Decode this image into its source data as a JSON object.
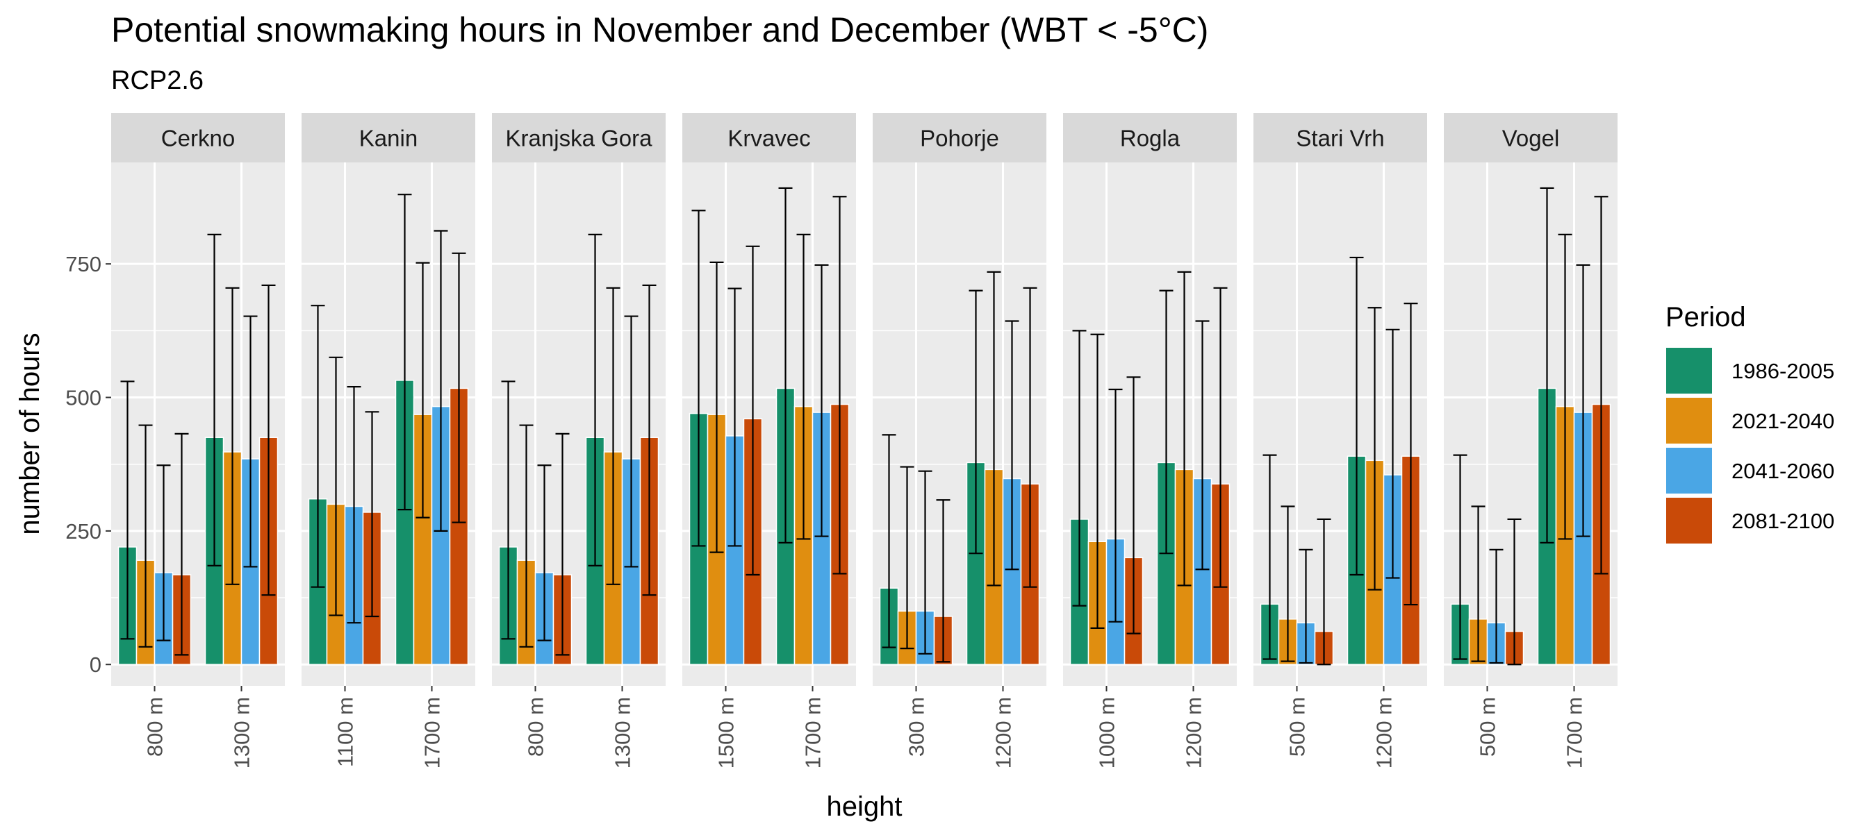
{
  "chart_data": {
    "type": "bar",
    "title": "Potential snowmaking hours in November and December (WBT < -5°C)",
    "subtitle": "RCP2.6",
    "xlabel": "height",
    "ylabel": "number of hours",
    "ylim": [
      -40,
      940
    ],
    "yticks": [
      0,
      250,
      500,
      750
    ],
    "grid": true,
    "legend_title": "Period",
    "legend_position": "right",
    "series": [
      {
        "name": "1986-2005",
        "color": "#16906A"
      },
      {
        "name": "2021-2040",
        "color": "#E08E10"
      },
      {
        "name": "2041-2060",
        "color": "#4AA6E5"
      },
      {
        "name": "2081-2100",
        "color": "#C94A08"
      }
    ],
    "facets": [
      {
        "name": "Cerkno",
        "groups": [
          {
            "label": "800 m",
            "bars": [
              {
                "value": 220,
                "low": 48,
                "high": 530
              },
              {
                "value": 195,
                "low": 33,
                "high": 448
              },
              {
                "value": 172,
                "low": 45,
                "high": 373
              },
              {
                "value": 168,
                "low": 18,
                "high": 432
              }
            ]
          },
          {
            "label": "1300 m",
            "bars": [
              {
                "value": 425,
                "low": 185,
                "high": 805
              },
              {
                "value": 398,
                "low": 150,
                "high": 705
              },
              {
                "value": 385,
                "low": 183,
                "high": 652
              },
              {
                "value": 425,
                "low": 130,
                "high": 710
              }
            ]
          }
        ]
      },
      {
        "name": "Kanin",
        "groups": [
          {
            "label": "1100 m",
            "bars": [
              {
                "value": 310,
                "low": 145,
                "high": 672
              },
              {
                "value": 300,
                "low": 92,
                "high": 575
              },
              {
                "value": 296,
                "low": 78,
                "high": 520
              },
              {
                "value": 285,
                "low": 90,
                "high": 473
              }
            ]
          },
          {
            "label": "1700 m",
            "bars": [
              {
                "value": 532,
                "low": 290,
                "high": 880
              },
              {
                "value": 468,
                "low": 275,
                "high": 752
              },
              {
                "value": 483,
                "low": 250,
                "high": 812
              },
              {
                "value": 517,
                "low": 266,
                "high": 770
              }
            ]
          }
        ]
      },
      {
        "name": "Kranjska Gora",
        "groups": [
          {
            "label": "800 m",
            "bars": [
              {
                "value": 220,
                "low": 48,
                "high": 530
              },
              {
                "value": 195,
                "low": 33,
                "high": 448
              },
              {
                "value": 172,
                "low": 45,
                "high": 373
              },
              {
                "value": 168,
                "low": 18,
                "high": 432
              }
            ]
          },
          {
            "label": "1300 m",
            "bars": [
              {
                "value": 425,
                "low": 185,
                "high": 805
              },
              {
                "value": 398,
                "low": 150,
                "high": 705
              },
              {
                "value": 385,
                "low": 183,
                "high": 652
              },
              {
                "value": 425,
                "low": 130,
                "high": 710
              }
            ]
          }
        ]
      },
      {
        "name": "Krvavec",
        "groups": [
          {
            "label": "1500 m",
            "bars": [
              {
                "value": 470,
                "low": 222,
                "high": 850
              },
              {
                "value": 468,
                "low": 210,
                "high": 753
              },
              {
                "value": 428,
                "low": 222,
                "high": 704
              },
              {
                "value": 460,
                "low": 168,
                "high": 783
              }
            ]
          },
          {
            "label": "1700 m",
            "bars": [
              {
                "value": 517,
                "low": 228,
                "high": 892
              },
              {
                "value": 483,
                "low": 235,
                "high": 805
              },
              {
                "value": 472,
                "low": 240,
                "high": 748
              },
              {
                "value": 487,
                "low": 170,
                "high": 876
              }
            ]
          }
        ]
      },
      {
        "name": "Pohorje",
        "groups": [
          {
            "label": "300 m",
            "bars": [
              {
                "value": 143,
                "low": 32,
                "high": 430
              },
              {
                "value": 100,
                "low": 30,
                "high": 370
              },
              {
                "value": 100,
                "low": 20,
                "high": 362
              },
              {
                "value": 90,
                "low": 5,
                "high": 308
              }
            ]
          },
          {
            "label": "1200 m",
            "bars": [
              {
                "value": 378,
                "low": 208,
                "high": 700
              },
              {
                "value": 365,
                "low": 148,
                "high": 735
              },
              {
                "value": 348,
                "low": 178,
                "high": 643
              },
              {
                "value": 338,
                "low": 145,
                "high": 705
              }
            ]
          }
        ]
      },
      {
        "name": "Rogla",
        "groups": [
          {
            "label": "1000 m",
            "bars": [
              {
                "value": 272,
                "low": 110,
                "high": 625
              },
              {
                "value": 230,
                "low": 68,
                "high": 618
              },
              {
                "value": 235,
                "low": 80,
                "high": 515
              },
              {
                "value": 200,
                "low": 58,
                "high": 538
              }
            ]
          },
          {
            "label": "1200 m",
            "bars": [
              {
                "value": 378,
                "low": 208,
                "high": 700
              },
              {
                "value": 365,
                "low": 148,
                "high": 735
              },
              {
                "value": 348,
                "low": 178,
                "high": 643
              },
              {
                "value": 338,
                "low": 145,
                "high": 705
              }
            ]
          }
        ]
      },
      {
        "name": "Stari Vrh",
        "groups": [
          {
            "label": "500 m",
            "bars": [
              {
                "value": 113,
                "low": 10,
                "high": 392
              },
              {
                "value": 85,
                "low": 6,
                "high": 296
              },
              {
                "value": 78,
                "low": 3,
                "high": 215
              },
              {
                "value": 62,
                "low": 0,
                "high": 272
              }
            ]
          },
          {
            "label": "1200 m",
            "bars": [
              {
                "value": 390,
                "low": 168,
                "high": 762
              },
              {
                "value": 382,
                "low": 140,
                "high": 668
              },
              {
                "value": 355,
                "low": 162,
                "high": 627
              },
              {
                "value": 390,
                "low": 112,
                "high": 676
              }
            ]
          }
        ]
      },
      {
        "name": "Vogel",
        "groups": [
          {
            "label": "500 m",
            "bars": [
              {
                "value": 113,
                "low": 10,
                "high": 392
              },
              {
                "value": 85,
                "low": 6,
                "high": 296
              },
              {
                "value": 78,
                "low": 3,
                "high": 215
              },
              {
                "value": 62,
                "low": 0,
                "high": 272
              }
            ]
          },
          {
            "label": "1700 m",
            "bars": [
              {
                "value": 517,
                "low": 228,
                "high": 892
              },
              {
                "value": 483,
                "low": 235,
                "high": 805
              },
              {
                "value": 472,
                "low": 240,
                "high": 748
              },
              {
                "value": 487,
                "low": 170,
                "high": 876
              }
            ]
          }
        ]
      }
    ]
  }
}
